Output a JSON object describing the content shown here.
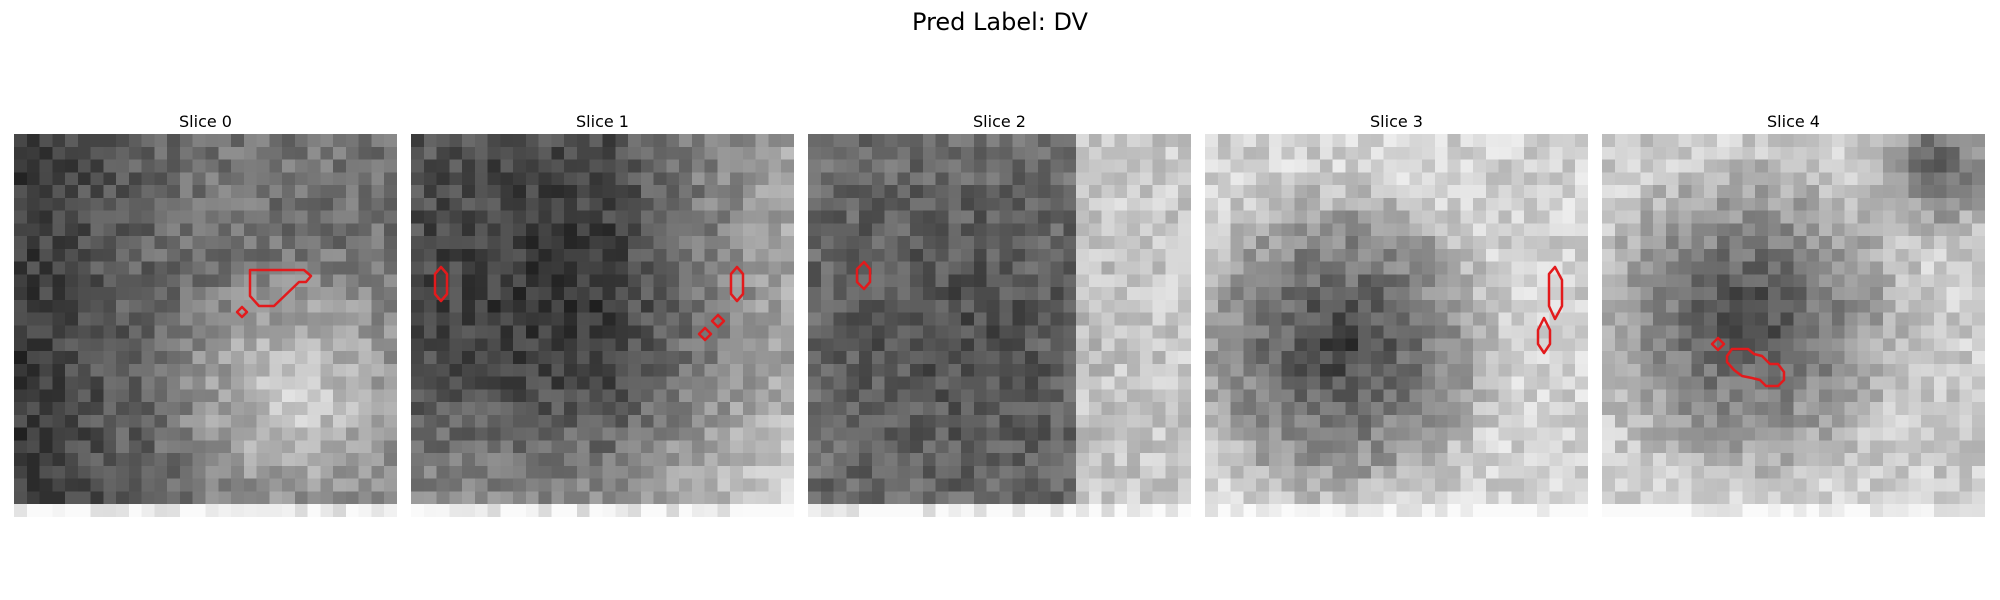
{
  "figure": {
    "title": "Pred Label: DV"
  },
  "colors": {
    "contour": "#e31a1c",
    "background": "#ffffff"
  },
  "panels": [
    {
      "title": "Slice 0"
    },
    {
      "title": "Slice 1"
    },
    {
      "title": "Slice 2"
    },
    {
      "title": "Slice 3"
    },
    {
      "title": "Slice 4"
    }
  ]
}
